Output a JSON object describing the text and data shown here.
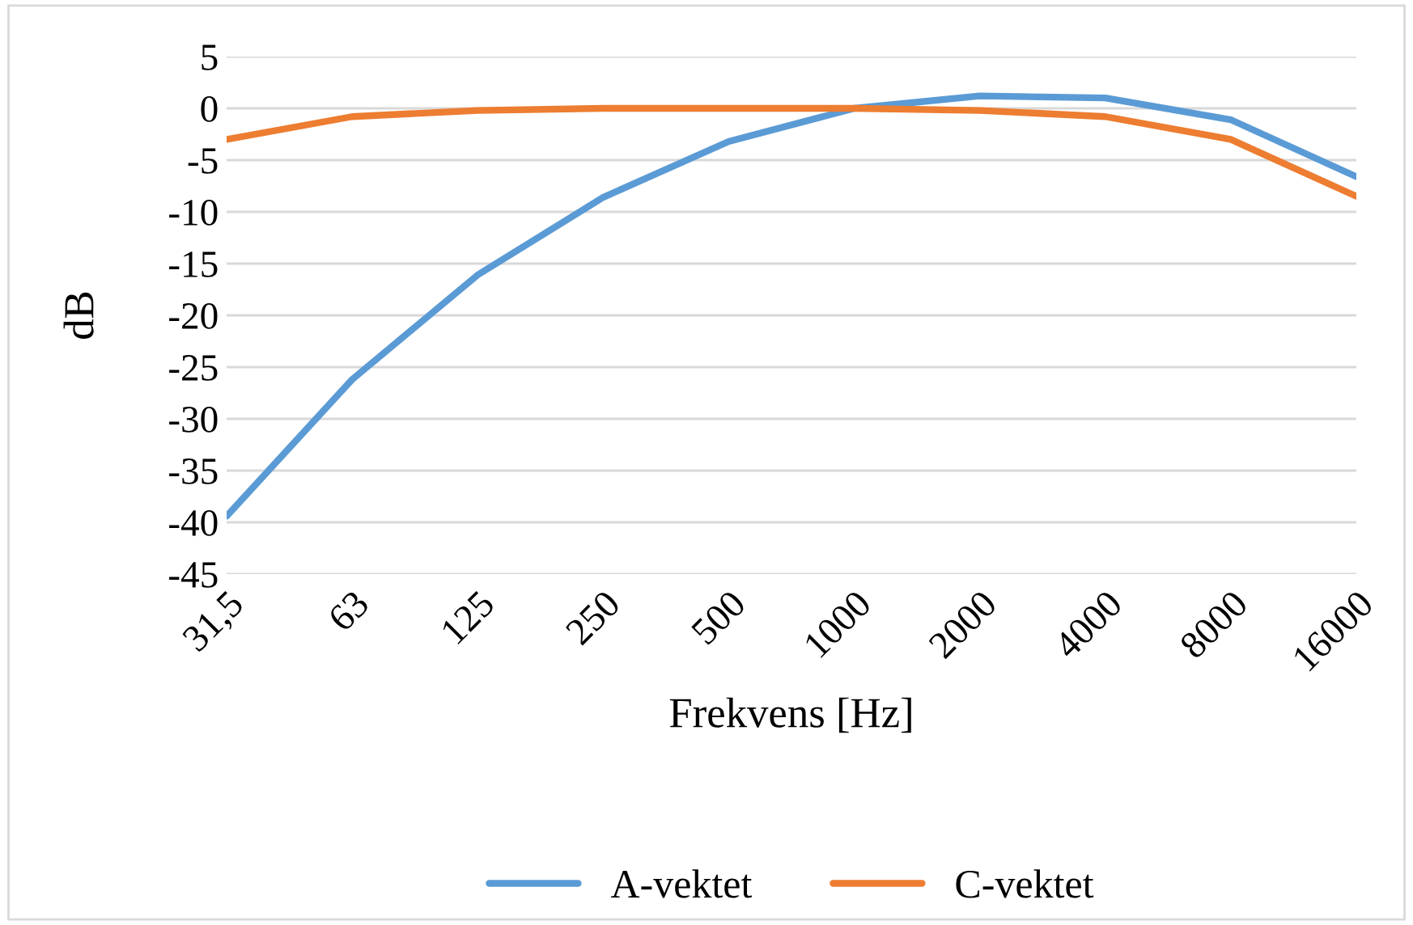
{
  "chart_data": {
    "type": "line",
    "xlabel": "Frekvens [Hz]",
    "ylabel": "dB",
    "categories": [
      "31,5",
      "63",
      "125",
      "250",
      "500",
      "1000",
      "2000",
      "4000",
      "8000",
      "16000"
    ],
    "series": [
      {
        "name": "A-vektet",
        "color": "#5b9bd5",
        "values": [
          -39.4,
          -26.2,
          -16.1,
          -8.6,
          -3.2,
          0,
          1.2,
          1.0,
          -1.1,
          -6.6
        ]
      },
      {
        "name": "C-vektet",
        "color": "#ed7d31",
        "values": [
          -3.0,
          -0.8,
          -0.2,
          0,
          0,
          0,
          -0.2,
          -0.8,
          -3.0,
          -8.5
        ]
      }
    ],
    "ylim": [
      -45,
      5
    ],
    "yticks": [
      5,
      0,
      -5,
      -10,
      -15,
      -20,
      -25,
      -30,
      -35,
      -40,
      -45
    ],
    "grid": "y",
    "legend": "bottom",
    "marker": "none",
    "line_style": "solid"
  }
}
